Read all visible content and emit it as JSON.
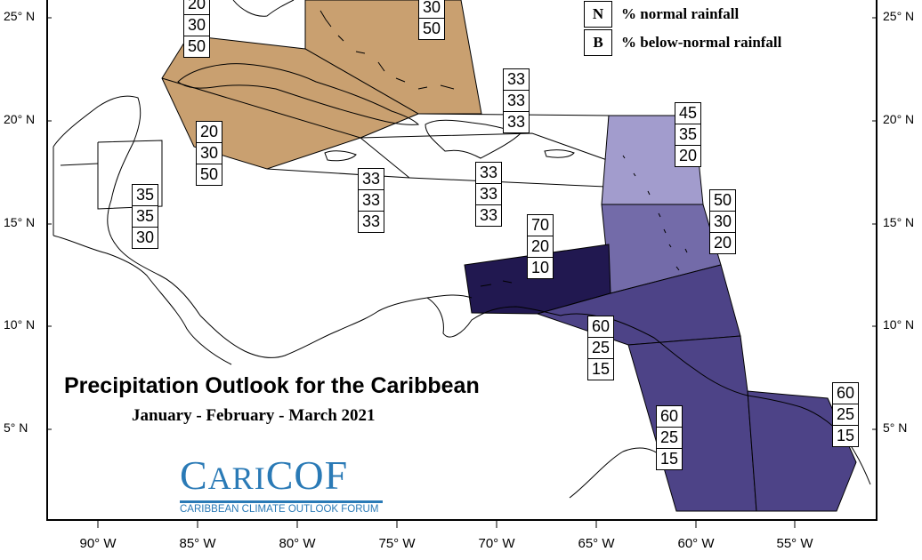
{
  "legend": {
    "n_key": "N",
    "n_text": "% normal rainfall",
    "b_key": "B",
    "b_text": "% below-normal rainfall"
  },
  "title": "Precipitation Outlook for the Caribbean",
  "subtitle": "January - February - March 2021",
  "logo": {
    "word_cap1": "C",
    "word_mid": "ARI",
    "word_tail": "COF",
    "tagline": "CARIBBEAN CLIMATE OUTLOOK FORUM"
  },
  "latitude_labels": [
    "25° N",
    "20° N",
    "15° N",
    "10° N",
    "5° N"
  ],
  "longitude_labels": [
    "90° W",
    "85° W",
    "80° W",
    "75° W",
    "70° W",
    "65° W",
    "60° W",
    "55° W"
  ],
  "colors": {
    "tan": "#c9a070",
    "lav_light": "#a29ccd",
    "lav_mid": "#736ba9",
    "purple_mid": "#4d4387",
    "purple_dark": "#211850",
    "logo_blue": "#2a7ab6"
  },
  "regions": [
    {
      "id": "bahamas",
      "fill": "tan",
      "probs": [
        "30",
        "50"
      ],
      "partial_top": "30"
    },
    {
      "id": "cuba-west",
      "fill": "tan",
      "probs": [
        "20",
        "30",
        "50"
      ]
    },
    {
      "id": "cuba-south",
      "fill": "tan",
      "probs": [
        "20",
        "30",
        "50"
      ]
    },
    {
      "id": "hispaniola",
      "fill": "white",
      "probs": [
        "33",
        "33",
        "33"
      ]
    },
    {
      "id": "jamaica",
      "fill": "white",
      "probs": [
        "33",
        "33",
        "33"
      ]
    },
    {
      "id": "hispaniola-south",
      "fill": "white",
      "probs": [
        "33",
        "33",
        "33"
      ]
    },
    {
      "id": "belize",
      "fill": "white",
      "probs": [
        "35",
        "35",
        "30"
      ]
    },
    {
      "id": "leeward-north",
      "fill": "lav_light",
      "probs": [
        "45",
        "35",
        "20"
      ]
    },
    {
      "id": "windward",
      "fill": "lav_mid",
      "probs": [
        "50",
        "30",
        "20"
      ]
    },
    {
      "id": "abc-islands",
      "fill": "purple_dark",
      "probs": [
        "70",
        "20",
        "10"
      ]
    },
    {
      "id": "trinidad",
      "fill": "purple_mid",
      "probs": [
        "60",
        "25",
        "15"
      ]
    },
    {
      "id": "guyana",
      "fill": "purple_mid",
      "probs": [
        "60",
        "25",
        "15"
      ]
    },
    {
      "id": "suriname",
      "fill": "purple_mid",
      "probs": [
        "60",
        "25",
        "15"
      ]
    }
  ],
  "bahamas_top": "20"
}
